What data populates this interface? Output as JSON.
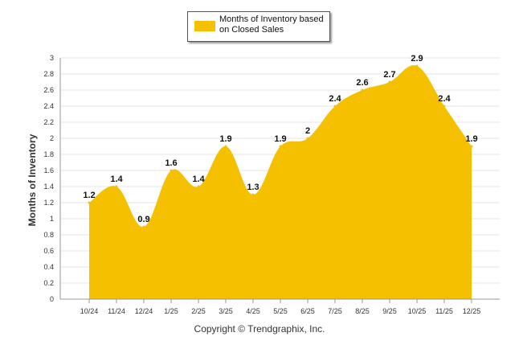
{
  "chart_data": {
    "type": "area",
    "categories": [
      "10/24",
      "11/24",
      "12/24",
      "1/25",
      "2/25",
      "3/25",
      "4/25",
      "5/25",
      "6/25",
      "7/25",
      "8/25",
      "9/25",
      "10/25",
      "11/25",
      "12/25"
    ],
    "series": [
      {
        "name": "Months of Inventory based on Closed Sales",
        "values": [
          1.2,
          1.4,
          0.9,
          1.6,
          1.4,
          1.9,
          1.3,
          1.9,
          2,
          2.4,
          2.6,
          2.7,
          2.9,
          2.4,
          1.9
        ]
      }
    ],
    "data_labels": [
      "1.2",
      "1.4",
      "0.9",
      "1.6",
      "1.4",
      "1.9",
      "1.3",
      "1.9",
      "2",
      "2.4",
      "2.6",
      "2.7",
      "2.9",
      "2.4",
      "1.9"
    ],
    "ylim": [
      0,
      3
    ],
    "yticks": [
      "0",
      "0.2",
      "0.4",
      "0.6",
      "0.8",
      "1",
      "1.2",
      "1.4",
      "1.6",
      "1.8",
      "2",
      "2.2",
      "2.4",
      "2.6",
      "2.8",
      "3"
    ],
    "ylabel": "Months of Inventory",
    "xlabel": "",
    "legend": {
      "label_line1": "Months of Inventory based",
      "label_line2": "on Closed Sales",
      "position": "top-center"
    },
    "colors": {
      "fill": "#f5c000",
      "grid": "#e6e6e6",
      "axis": "#999999"
    }
  },
  "footer": {
    "copyright": "Copyright © Trendgraphix, Inc."
  }
}
